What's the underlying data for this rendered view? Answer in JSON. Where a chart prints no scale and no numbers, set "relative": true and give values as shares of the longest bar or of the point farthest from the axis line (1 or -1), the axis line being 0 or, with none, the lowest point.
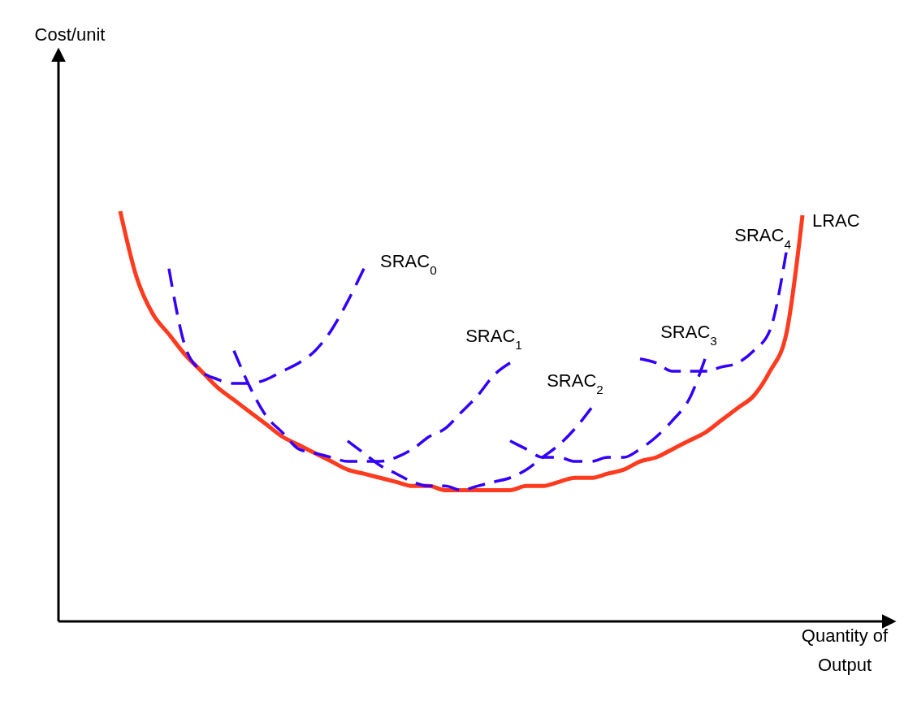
{
  "chart_data": {
    "type": "line",
    "relative": true,
    "annotations": [
      "Cost/unit"
    ],
    "xlabel": "Quantity of Output",
    "categories": [
      null,
      null,
      null,
      null,
      null,
      null,
      null,
      null,
      null,
      null,
      null,
      null,
      null,
      null,
      null,
      null,
      null,
      null,
      null,
      null,
      null,
      null,
      null,
      null,
      null,
      null,
      null,
      null,
      null,
      null,
      null,
      null,
      null,
      null,
      null,
      null,
      null,
      null,
      null,
      null,
      null,
      null,
      null
    ],
    "series": [
      {
        "name": "LRAC",
        "color": "#ff3b1f",
        "line_style": "solid",
        "values": [
          1,
          0.84,
          0.75,
          0.7,
          0.65,
          0.61,
          0.57,
          0.54,
          0.51,
          0.48,
          0.45,
          0.43,
          0.41,
          0.39,
          0.37,
          0.36,
          0.35,
          0.34,
          0.33,
          0.33,
          0.32,
          0.32,
          0.32,
          0.32,
          0.32,
          0.33,
          0.33,
          0.34,
          0.35,
          0.35,
          0.36,
          0.37,
          0.39,
          0.4,
          0.42,
          0.44,
          0.46,
          0.49,
          0.52,
          0.55,
          0.61,
          0.7,
          0.99
        ]
      },
      {
        "name": "SRAC$_{0}$",
        "color": "#3300ff",
        "line_style": "dashed",
        "values": [
          null,
          null,
          null,
          0.86,
          0.67,
          0.61,
          0.59,
          0.58,
          0.58,
          0.59,
          0.61,
          0.63,
          0.66,
          0.71,
          0.78,
          0.86,
          null,
          null,
          null,
          null,
          null,
          null,
          null,
          null,
          null,
          null,
          null,
          null,
          null,
          null,
          null,
          null,
          null,
          null,
          null,
          null,
          null,
          null,
          null,
          null,
          null,
          null,
          null
        ]
      },
      {
        "name": "SRAC$_{1}$",
        "color": "#3300ff",
        "line_style": "dashed",
        "values": [
          null,
          null,
          null,
          null,
          null,
          null,
          null,
          0.66,
          0.57,
          0.5,
          0.46,
          0.42,
          0.41,
          0.4,
          0.39,
          0.39,
          0.39,
          0.4,
          0.42,
          0.45,
          0.47,
          0.51,
          0.55,
          0.6,
          0.63,
          null,
          null,
          null,
          null,
          null,
          null,
          null,
          null,
          null,
          null,
          null,
          null,
          null,
          null,
          null,
          null,
          null,
          null
        ]
      },
      {
        "name": "SRAC$_{2}$",
        "color": "#3300ff",
        "line_style": "dashed",
        "values": [
          null,
          null,
          null,
          null,
          null,
          null,
          null,
          null,
          null,
          null,
          null,
          null,
          null,
          null,
          0.44,
          0.41,
          0.38,
          0.36,
          0.34,
          0.33,
          0.33,
          0.32,
          0.33,
          0.34,
          0.35,
          0.37,
          0.4,
          0.43,
          0.47,
          0.52,
          null,
          null,
          null,
          null,
          null,
          null,
          null,
          null,
          null,
          null,
          null,
          null,
          null
        ]
      },
      {
        "name": "SRAC$_{3}$",
        "color": "#3300ff",
        "line_style": "dashed",
        "values": [
          null,
          null,
          null,
          null,
          null,
          null,
          null,
          null,
          null,
          null,
          null,
          null,
          null,
          null,
          null,
          null,
          null,
          null,
          null,
          null,
          null,
          null,
          null,
          null,
          0.44,
          0.42,
          0.4,
          0.4,
          0.39,
          0.39,
          0.4,
          0.4,
          0.42,
          0.45,
          0.49,
          0.54,
          0.64,
          null,
          null,
          null,
          null,
          null,
          null
        ]
      },
      {
        "name": "SRAC$_{4}$",
        "color": "#3300ff",
        "line_style": "dashed",
        "values": [
          null,
          null,
          null,
          null,
          null,
          null,
          null,
          null,
          null,
          null,
          null,
          null,
          null,
          null,
          null,
          null,
          null,
          null,
          null,
          null,
          null,
          null,
          null,
          null,
          null,
          null,
          null,
          null,
          null,
          null,
          null,
          null,
          0.64,
          0.63,
          0.61,
          0.61,
          0.61,
          0.62,
          0.63,
          0.66,
          0.71,
          0.9,
          null
        ]
      }
    ]
  }
}
